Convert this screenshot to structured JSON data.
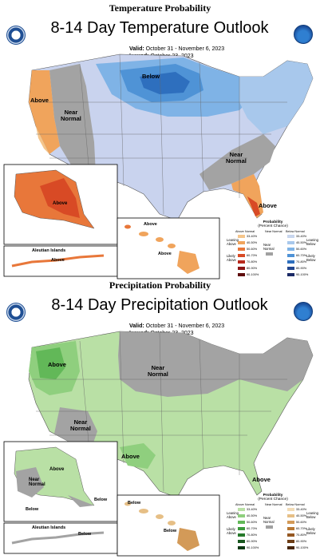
{
  "top": {
    "section_title": "Temperature Probability",
    "map_title": "8-14 Day Temperature Outlook",
    "valid_label": "Valid:",
    "valid_value": "October 31 - November 6, 2023",
    "issued_label": "Issued:",
    "issued_value": "October 23, 2023",
    "labels": {
      "above_west": "Above",
      "near_normal": "Near\nNormal",
      "below": "Below",
      "near_normal_se": "Near\nNormal",
      "above_fl": "Above",
      "above_ak": "Above",
      "above_hi1": "Above",
      "above_hi2": "Above",
      "aleutian": "Aleutian Islands",
      "above_aleut": "Above"
    },
    "legend": {
      "title": "Probability",
      "subtitle": "(Percent Chance)",
      "col_above": "Above Normal",
      "col_near": "Near Normal",
      "col_below": "Below Normal",
      "leaning_above": "Leaning Above",
      "likely_above": "Likely Above",
      "leaning_below": "Leaning Below",
      "likely_below": "Likely Below",
      "near_label": "Near Normal",
      "ranges_above": [
        "33-40%",
        "40-50%",
        "50-60%",
        "60-70%",
        "70-80%",
        "80-90%",
        "90-100%"
      ],
      "ranges_below": [
        "33-40%",
        "40-50%",
        "50-60%",
        "60-70%",
        "70-80%",
        "80-90%",
        "90-100%"
      ],
      "colors_above": [
        "#f5c58b",
        "#f0a45c",
        "#e8773a",
        "#d84a25",
        "#b8291c",
        "#8c1515",
        "#5e0d0d"
      ],
      "colors_below": [
        "#c8d6ee",
        "#a8c8ec",
        "#7fb3e6",
        "#4f93d6",
        "#2e6fbe",
        "#22478f",
        "#1b2a66"
      ],
      "color_near": "#a0a0a0"
    }
  },
  "bottom": {
    "section_title": "Precipitation Probability",
    "map_title": "8-14 Day Precipitation Outlook",
    "valid_label": "Valid:",
    "valid_value": "October 31 - November 6, 2023",
    "issued_label": "Issued:",
    "issued_value": "October 23, 2023",
    "labels": {
      "above_nw": "Above",
      "near_normal_n": "Near\nNormal",
      "near_normal_sw": "Near\nNormal",
      "above_tx": "Above",
      "above_fl": "Above",
      "above_ak": "Above",
      "near_normal_ak": "Near\nNormal",
      "below_ak": "Below",
      "below_ak2": "Below",
      "below_hi1": "Below",
      "below_hi2": "Below",
      "aleutian": "Aleutian Islands",
      "below_aleut": "Below"
    },
    "legend": {
      "title": "Probability",
      "subtitle": "(Percent Chance)",
      "col_above": "Above Normal",
      "col_near": "Near Normal",
      "col_below": "Below Normal",
      "leaning_above": "Leaning Above",
      "likely_above": "Likely Above",
      "leaning_below": "Leaning Below",
      "likely_below": "Likely Below",
      "near_label": "Near Normal",
      "ranges_above": [
        "33-40%",
        "40-50%",
        "50-60%",
        "60-70%",
        "70-80%",
        "80-90%",
        "90-100%"
      ],
      "ranges_below": [
        "33-40%",
        "40-50%",
        "50-60%",
        "60-70%",
        "70-80%",
        "80-90%",
        "90-100%"
      ],
      "colors_above": [
        "#b9e0a5",
        "#8fcf7e",
        "#62b858",
        "#3c9a3c",
        "#26792b",
        "#17561d",
        "#0c3812"
      ],
      "colors_below": [
        "#f2dcb6",
        "#e6bf86",
        "#d39a58",
        "#b87834",
        "#955822",
        "#6c3c14",
        "#46250a"
      ],
      "color_near": "#a0a0a0"
    }
  }
}
